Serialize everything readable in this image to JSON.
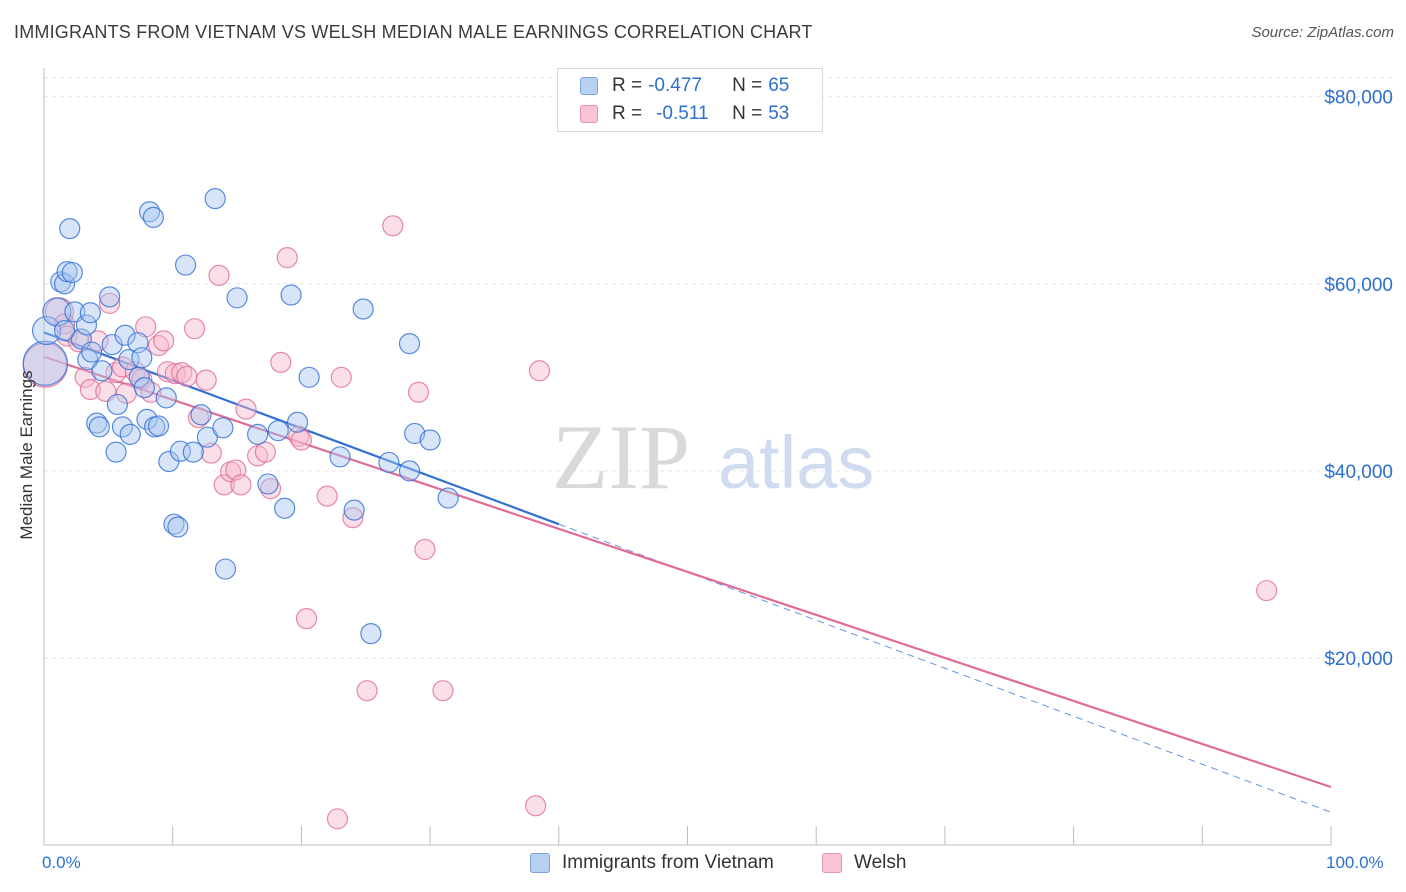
{
  "header": {
    "title": "IMMIGRANTS FROM VIETNAM VS WELSH MEDIAN MALE EARNINGS CORRELATION CHART",
    "source": "Source: ZipAtlas.com"
  },
  "watermark": {
    "zip": "ZIP",
    "atlas": "atlas"
  },
  "legend": {
    "rows": [
      {
        "r_label": "R =",
        "r_value": "-0.477",
        "n_label": "N =",
        "n_value": "65"
      },
      {
        "r_label": "R =",
        "r_value": "-0.511",
        "n_label": "N =",
        "n_value": "53"
      }
    ]
  },
  "bottom_legend": {
    "blue": "Immigrants from Vietnam",
    "pink": "Welsh"
  },
  "chart_data": {
    "type": "scatter",
    "title": "IMMIGRANTS FROM VIETNAM VS WELSH MEDIAN MALE EARNINGS CORRELATION CHART",
    "xlabel": "",
    "ylabel": "Median Male Earnings",
    "xlim": [
      0,
      100
    ],
    "ylim": [
      0,
      82000
    ],
    "x_tick_labels": [
      "0.0%",
      "100.0%"
    ],
    "y_ticks": [
      20000,
      40000,
      60000,
      80000
    ],
    "y_tick_labels": [
      "$20,000",
      "$40,000",
      "$60,000",
      "$80,000"
    ],
    "grid": true,
    "colors": {
      "blue": "#2f6fd6",
      "pink": "#e06c96",
      "blue_fill": "#a9c6ef",
      "pink_fill": "#f7b8cc",
      "tick_text": "#2c6fd1"
    },
    "series": [
      {
        "name": "Immigrants from Vietnam",
        "color": "blue",
        "trend": {
          "x0": 0,
          "y0": 54800,
          "x1": 40,
          "y1": 34300,
          "dash_to_x": 100,
          "dash_to_y": 3500
        },
        "points": [
          [
            0.1,
            51500,
            22
          ],
          [
            0.2,
            55000,
            14
          ],
          [
            1.0,
            57000,
            14
          ],
          [
            1.3,
            60200,
            10
          ],
          [
            1.6,
            60000,
            10
          ],
          [
            1.8,
            61300,
            10
          ],
          [
            2.0,
            65900,
            10
          ],
          [
            2.2,
            61200,
            10
          ],
          [
            2.4,
            57000,
            10
          ],
          [
            2.9,
            54100,
            10
          ],
          [
            3.3,
            55600,
            10
          ],
          [
            3.4,
            51900,
            10
          ],
          [
            3.6,
            56900,
            10
          ],
          [
            3.7,
            52700,
            10
          ],
          [
            4.1,
            45100,
            10
          ],
          [
            4.3,
            44700,
            10
          ],
          [
            4.5,
            50700,
            10
          ],
          [
            5.1,
            58600,
            10
          ],
          [
            5.3,
            53500,
            10
          ],
          [
            5.6,
            42000,
            10
          ],
          [
            5.7,
            47100,
            10
          ],
          [
            6.1,
            44700,
            10
          ],
          [
            6.3,
            54500,
            10
          ],
          [
            6.6,
            51900,
            10
          ],
          [
            6.7,
            43900,
            10
          ],
          [
            7.3,
            53700,
            10
          ],
          [
            7.4,
            50000,
            10
          ],
          [
            7.6,
            52100,
            10
          ],
          [
            7.8,
            48900,
            10
          ],
          [
            8.0,
            45500,
            10
          ],
          [
            8.2,
            67700,
            10
          ],
          [
            8.5,
            67100,
            10
          ],
          [
            8.6,
            44700,
            10
          ],
          [
            8.9,
            44800,
            10
          ],
          [
            9.5,
            47800,
            10
          ],
          [
            9.7,
            41000,
            10
          ],
          [
            10.1,
            34300,
            10
          ],
          [
            10.4,
            34000,
            10
          ],
          [
            10.6,
            42100,
            10
          ],
          [
            11.0,
            62000,
            10
          ],
          [
            11.6,
            42000,
            10
          ],
          [
            12.2,
            46000,
            10
          ],
          [
            12.7,
            43600,
            10
          ],
          [
            13.3,
            69100,
            10
          ],
          [
            13.9,
            44600,
            10
          ],
          [
            14.1,
            29500,
            10
          ],
          [
            15.0,
            58500,
            10
          ],
          [
            16.6,
            43900,
            10
          ],
          [
            17.4,
            38600,
            10
          ],
          [
            18.2,
            44300,
            10
          ],
          [
            18.7,
            36000,
            10
          ],
          [
            19.2,
            58800,
            10
          ],
          [
            19.7,
            45200,
            10
          ],
          [
            20.6,
            50000,
            10
          ],
          [
            23.0,
            41500,
            10
          ],
          [
            24.1,
            35800,
            10
          ],
          [
            24.8,
            57300,
            10
          ],
          [
            25.4,
            22600,
            10
          ],
          [
            26.8,
            40900,
            10
          ],
          [
            28.4,
            53600,
            10
          ],
          [
            28.8,
            44000,
            10
          ],
          [
            28.4,
            40000,
            10
          ],
          [
            30.0,
            43300,
            10
          ],
          [
            31.4,
            37100,
            10
          ],
          [
            1.6,
            55000,
            10
          ]
        ]
      },
      {
        "name": "Welsh",
        "color": "pink",
        "trend": {
          "x0": 0,
          "y0": 52200,
          "x1": 100,
          "y1": 6200
        },
        "points": [
          [
            0.1,
            51300,
            22
          ],
          [
            1.2,
            57000,
            14
          ],
          [
            1.6,
            55700,
            10
          ],
          [
            1.8,
            54400,
            10
          ],
          [
            2.7,
            53800,
            10
          ],
          [
            3.2,
            50000,
            10
          ],
          [
            3.6,
            48700,
            10
          ],
          [
            4.2,
            53900,
            10
          ],
          [
            4.8,
            48500,
            10
          ],
          [
            5.1,
            57900,
            10
          ],
          [
            5.6,
            50500,
            10
          ],
          [
            6.1,
            51100,
            10
          ],
          [
            6.4,
            48300,
            10
          ],
          [
            7.1,
            50600,
            10
          ],
          [
            7.6,
            49800,
            10
          ],
          [
            7.9,
            55400,
            10
          ],
          [
            8.3,
            48400,
            10
          ],
          [
            8.9,
            53400,
            10
          ],
          [
            9.3,
            53900,
            10
          ],
          [
            9.6,
            50600,
            10
          ],
          [
            10.2,
            50400,
            10
          ],
          [
            10.7,
            50500,
            10
          ],
          [
            11.1,
            50100,
            10
          ],
          [
            11.7,
            55200,
            10
          ],
          [
            12.0,
            45700,
            10
          ],
          [
            12.6,
            49700,
            10
          ],
          [
            13.0,
            41900,
            10
          ],
          [
            13.6,
            60900,
            10
          ],
          [
            14.0,
            38500,
            10
          ],
          [
            14.5,
            39900,
            10
          ],
          [
            14.9,
            40100,
            10
          ],
          [
            15.3,
            38500,
            10
          ],
          [
            15.7,
            46600,
            10
          ],
          [
            16.6,
            41600,
            10
          ],
          [
            17.2,
            42000,
            10
          ],
          [
            17.6,
            38100,
            10
          ],
          [
            18.4,
            51600,
            10
          ],
          [
            18.9,
            62800,
            10
          ],
          [
            19.8,
            43700,
            10
          ],
          [
            20.4,
            24200,
            10
          ],
          [
            22.0,
            37300,
            10
          ],
          [
            22.8,
            2800,
            10
          ],
          [
            23.1,
            50000,
            10
          ],
          [
            24.0,
            35000,
            10
          ],
          [
            25.1,
            16500,
            10
          ],
          [
            27.1,
            66200,
            10
          ],
          [
            29.1,
            48400,
            10
          ],
          [
            29.6,
            31600,
            10
          ],
          [
            31.0,
            16500,
            10
          ],
          [
            38.2,
            4200,
            10
          ],
          [
            38.5,
            50700,
            10
          ],
          [
            95.0,
            27200,
            10
          ],
          [
            20.0,
            43300,
            10
          ]
        ]
      }
    ]
  }
}
